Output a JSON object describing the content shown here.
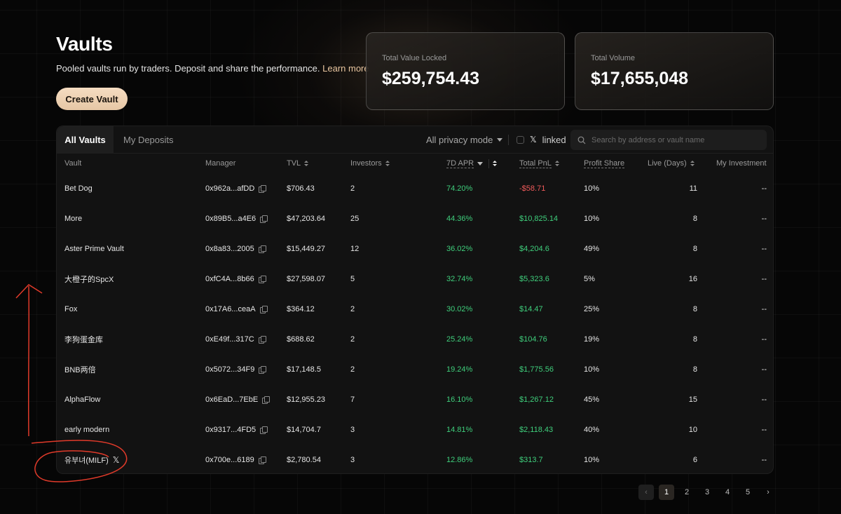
{
  "header": {
    "title": "Vaults",
    "subtitle": "Pooled vaults run by traders. Deposit and share the performance.",
    "learn_more": "Learn more",
    "create_button": "Create Vault"
  },
  "stats": [
    {
      "label": "Total Value Locked",
      "value": "$259,754.43"
    },
    {
      "label": "Total Volume",
      "value": "$17,655,048"
    }
  ],
  "tabs": [
    "All Vaults",
    "My Deposits"
  ],
  "filters": {
    "privacy": "All privacy mode",
    "x_linked": "linked"
  },
  "search": {
    "placeholder": "Search by address or vault name"
  },
  "columns": [
    "Vault",
    "Manager",
    "TVL",
    "Investors",
    "7D APR",
    "Total PnL",
    "Profit Share",
    "Live (Days)",
    "My Investment"
  ],
  "rows": [
    {
      "vault": "Bet Dog",
      "manager": "0x962a...afDD",
      "tvl": "$706.43",
      "investors": "2",
      "apr": "74.20%",
      "pnl": "-$58.71",
      "share": "10%",
      "days": "11",
      "mine": "--"
    },
    {
      "vault": "More",
      "manager": "0x89B5...a4E6",
      "tvl": "$47,203.64",
      "investors": "25",
      "apr": "44.36%",
      "pnl": "$10,825.14",
      "share": "10%",
      "days": "8",
      "mine": "--"
    },
    {
      "vault": "Aster Prime Vault",
      "manager": "0x8a83...2005",
      "tvl": "$15,449.27",
      "investors": "12",
      "apr": "36.02%",
      "pnl": "$4,204.6",
      "share": "49%",
      "days": "8",
      "mine": "--"
    },
    {
      "vault": "大橙子的SpcX",
      "manager": "0xfC4A...8b66",
      "tvl": "$27,598.07",
      "investors": "5",
      "apr": "32.74%",
      "pnl": "$5,323.6",
      "share": "5%",
      "days": "16",
      "mine": "--"
    },
    {
      "vault": "Fox",
      "manager": "0x17A6...ceaA",
      "tvl": "$364.12",
      "investors": "2",
      "apr": "30.02%",
      "pnl": "$14.47",
      "share": "25%",
      "days": "8",
      "mine": "--"
    },
    {
      "vault": "李狗蛋金库",
      "manager": "0xE49f...317C",
      "tvl": "$688.62",
      "investors": "2",
      "apr": "25.24%",
      "pnl": "$104.76",
      "share": "19%",
      "days": "8",
      "mine": "--"
    },
    {
      "vault": "BNB两倍",
      "manager": "0x5072...34F9",
      "tvl": "$17,148.5",
      "investors": "2",
      "apr": "19.24%",
      "pnl": "$1,775.56",
      "share": "10%",
      "days": "8",
      "mine": "--"
    },
    {
      "vault": "AlphaFlow",
      "manager": "0x6EaD...7EbE",
      "tvl": "$12,955.23",
      "investors": "7",
      "apr": "16.10%",
      "pnl": "$1,267.12",
      "share": "45%",
      "days": "15",
      "mine": "--"
    },
    {
      "vault": "early modern",
      "manager": "0x9317...4FD5",
      "tvl": "$14,704.7",
      "investors": "3",
      "apr": "14.81%",
      "pnl": "$2,118.43",
      "share": "40%",
      "days": "10",
      "mine": "--"
    },
    {
      "vault": "유부녀(MILF)",
      "manager": "0x700e...6189",
      "tvl": "$2,780.54",
      "investors": "3",
      "apr": "12.86%",
      "pnl": "$313.7",
      "share": "10%",
      "days": "6",
      "mine": "--"
    }
  ],
  "pagination": {
    "prev": "‹",
    "pages": [
      "1",
      "2",
      "3",
      "4",
      "5"
    ],
    "next": "›"
  },
  "colors": {
    "accent": "#e9c6a0",
    "positive": "#3fcf7c",
    "negative": "#ef5a5a",
    "annotation": "#e03a2a"
  }
}
